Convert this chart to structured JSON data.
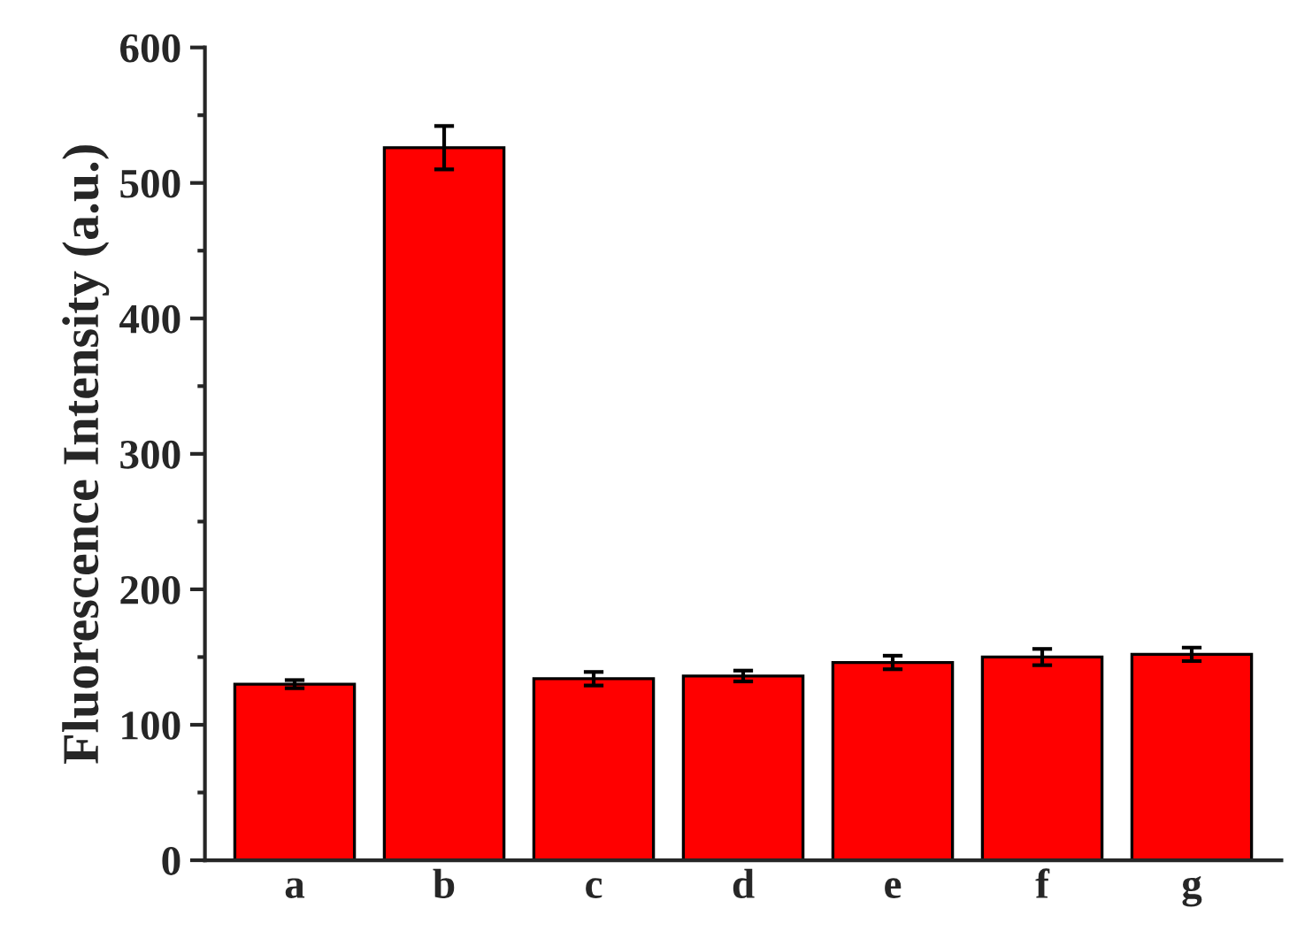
{
  "chart_data": {
    "type": "bar",
    "ylabel": "Fluorescence Intensity (a.u.)",
    "categories": [
      "a",
      "b",
      "c",
      "d",
      "e",
      "f",
      "g"
    ],
    "values": [
      130,
      526,
      134,
      136,
      146,
      150,
      152
    ],
    "errors": [
      3,
      16,
      5,
      4,
      5,
      6,
      5
    ],
    "color": "#ff0000",
    "ylim": [
      0,
      600
    ],
    "yticks": [
      0,
      100,
      200,
      300,
      400,
      500,
      600
    ],
    "grid": false
  }
}
